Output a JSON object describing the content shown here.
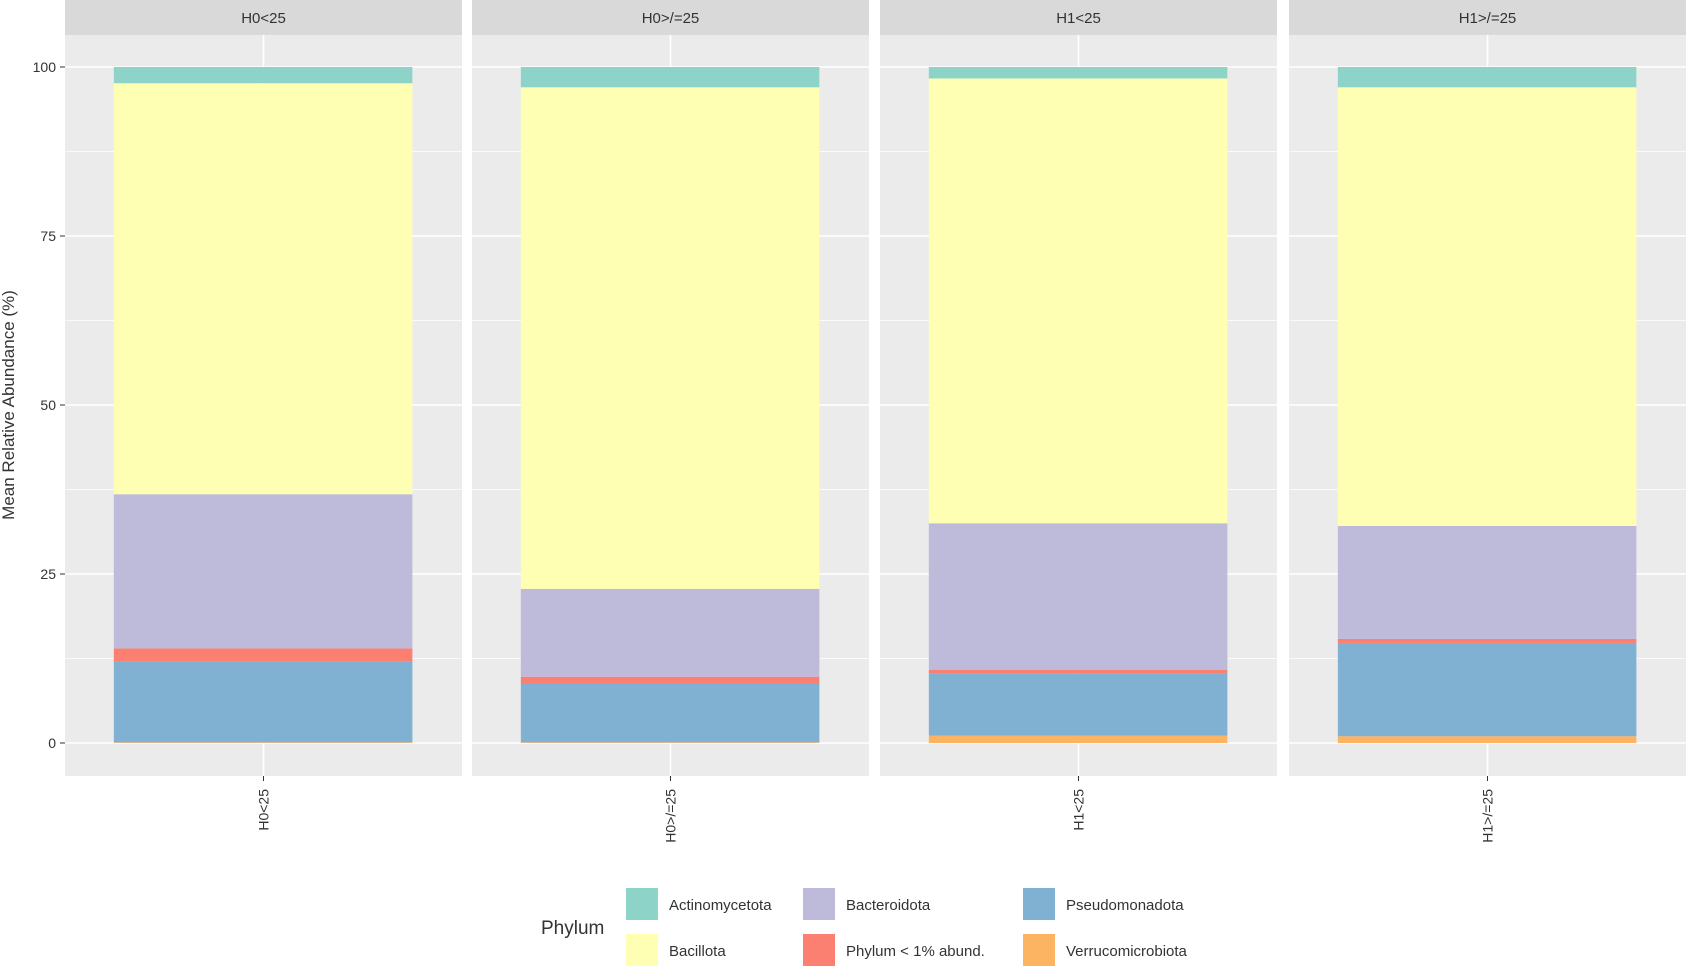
{
  "chart_data": {
    "type": "bar",
    "stacked": true,
    "ylabel": "Mean Relative Abundance (%)",
    "xlabel": "",
    "ylim": [
      0,
      100
    ],
    "yticks": [
      "0",
      "25",
      "50",
      "75",
      "100"
    ],
    "grid": true,
    "facets": [
      "H0<25",
      "H0>/=25",
      "H1<25",
      "H1>/=25"
    ],
    "categories": [
      "H0<25",
      "H0>/=25",
      "H1<25",
      "H1>/=25"
    ],
    "legend": {
      "title": "Phylum",
      "placement": "bottom"
    },
    "series": [
      {
        "name": "Verrucomicrobiota",
        "color": "#fdb462",
        "values": [
          0.1,
          0.1,
          1.1,
          1.0
        ]
      },
      {
        "name": "Pseudomonadota",
        "color": "#80b1d3",
        "values": [
          11.9,
          8.7,
          9.2,
          13.8
        ]
      },
      {
        "name": "Phylum < 1% abund.",
        "color": "#fb8072",
        "values": [
          2.0,
          1.0,
          0.5,
          0.6
        ]
      },
      {
        "name": "Bacteroidota",
        "color": "#bebada",
        "values": [
          22.8,
          13.0,
          21.7,
          16.7
        ]
      },
      {
        "name": "Bacillota",
        "color": "#ffffb3",
        "values": [
          60.8,
          74.2,
          65.8,
          64.9
        ]
      },
      {
        "name": "Actinomycetota",
        "color": "#8dd3c7",
        "values": [
          2.4,
          3.0,
          1.7,
          3.0
        ]
      }
    ],
    "legend_order": [
      "Actinomycetota",
      "Bacillota",
      "Bacteroidota",
      "Phylum < 1% abund.",
      "Pseudomonadota",
      "Verrucomicrobiota"
    ]
  }
}
